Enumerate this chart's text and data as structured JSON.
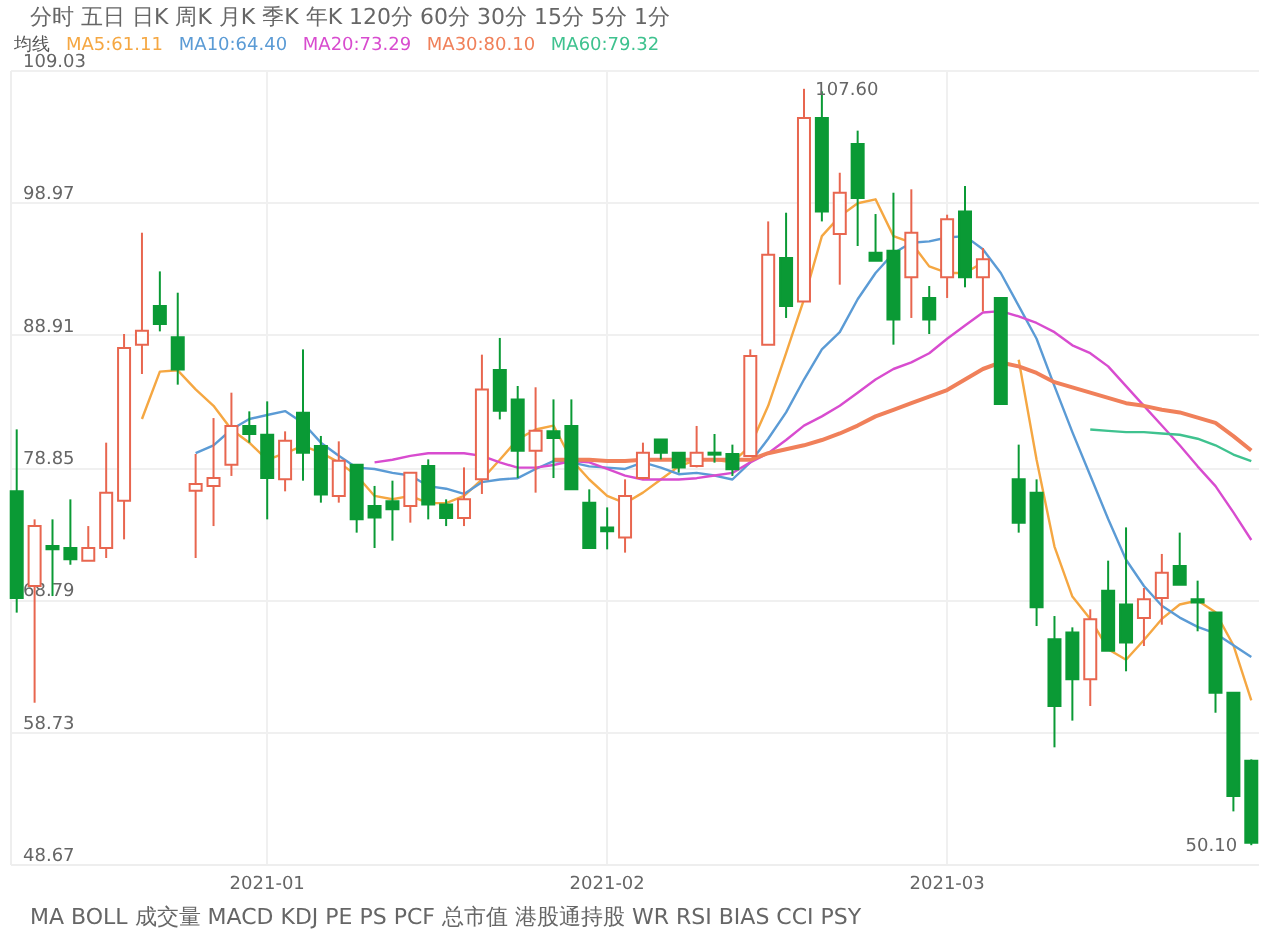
{
  "chart_data": {
    "type": "candlestick",
    "legend_title": "均线",
    "legend": "top left",
    "grid": true,
    "annotations": [
      "分时 五日 日K 周K 月K 季K 年K 120分 60分 30分 15分 5分 1分",
      "MA BOLL 成交量 MACD KDJ PE PS PCF 总市值 港股通持股 WR RSI BIAS CCI PSY",
      "107.60",
      "50.10"
    ],
    "categories": [
      null,
      null,
      null,
      null,
      null,
      null,
      null,
      null,
      null,
      null,
      null,
      null,
      null,
      null,
      "2021-01",
      null,
      null,
      null,
      null,
      null,
      null,
      null,
      null,
      null,
      null,
      null,
      null,
      null,
      null,
      null,
      null,
      null,
      null,
      "2021-02",
      null,
      null,
      null,
      null,
      null,
      null,
      null,
      null,
      null,
      null,
      null,
      null,
      null,
      null,
      null,
      null,
      null,
      null,
      "2021-03",
      null,
      null,
      null,
      null,
      null,
      null,
      null,
      null,
      null,
      null,
      null,
      null,
      null,
      null,
      null,
      null,
      null
    ],
    "ylim": [
      48.67,
      109.03
    ],
    "yticks": [
      48.67,
      58.73,
      68.79,
      78.85,
      88.91,
      98.97,
      109.03
    ],
    "ohlc": [
      [
        77.0,
        81.71,
        67.78,
        68.89
      ],
      [
        69.8,
        74.87,
        60.93,
        74.36
      ],
      [
        72.84,
        74.87,
        69.04,
        72.59
      ],
      [
        72.69,
        76.39,
        71.42,
        71.83
      ],
      [
        71.73,
        74.36,
        71.73,
        72.69
      ],
      [
        72.69,
        80.7,
        71.93,
        76.9
      ],
      [
        76.29,
        88.96,
        73.35,
        87.9
      ],
      [
        88.15,
        96.66,
        85.92,
        89.21
      ],
      [
        91.09,
        93.72,
        89.16,
        89.72
      ],
      [
        88.71,
        92.1,
        85.11,
        86.27
      ],
      [
        77.05,
        79.84,
        71.93,
        77.56
      ],
      [
        77.41,
        82.57,
        74.36,
        78.01
      ],
      [
        79.03,
        84.5,
        78.17,
        81.97
      ],
      [
        81.97,
        83.08,
        80.7,
        81.36
      ],
      [
        81.31,
        83.84,
        74.87,
        78.01
      ],
      [
        77.91,
        81.56,
        77.0,
        80.85
      ],
      [
        82.98,
        87.79,
        77.81,
        79.94
      ],
      [
        80.45,
        81.21,
        76.14,
        76.75
      ],
      [
        76.65,
        80.8,
        76.14,
        79.33
      ],
      [
        79.03,
        79.03,
        73.86,
        74.87
      ],
      [
        75.88,
        77.41,
        72.69,
        75.02
      ],
      [
        76.24,
        77.81,
        73.25,
        75.63
      ],
      [
        75.88,
        78.42,
        74.62,
        78.42
      ],
      [
        78.93,
        79.43,
        74.87,
        75.99
      ],
      [
        75.99,
        76.39,
        74.36,
        74.97
      ],
      [
        74.97,
        78.82,
        74.36,
        76.39
      ],
      [
        77.91,
        87.39,
        76.8,
        84.75
      ],
      [
        86.22,
        88.66,
        82.47,
        83.13
      ],
      [
        83.99,
        85.01,
        78.01,
        80.09
      ],
      [
        80.09,
        84.91,
        76.9,
        81.61
      ],
      [
        81.56,
        83.99,
        78.01,
        81.05
      ],
      [
        81.97,
        83.99,
        77.15,
        77.15
      ],
      [
        76.14,
        77.15,
        72.69,
        72.69
      ],
      [
        74.26,
        75.78,
        72.59,
        73.96
      ],
      [
        73.5,
        77.91,
        72.34,
        76.65
      ],
      [
        78.01,
        80.7,
        77.91,
        79.94
      ],
      [
        80.95,
        80.95,
        79.43,
        79.94
      ],
      [
        79.94,
        79.94,
        78.42,
        78.82
      ],
      [
        78.93,
        81.97,
        78.82,
        79.94
      ],
      [
        79.94,
        81.36,
        79.18,
        79.79
      ],
      [
        79.84,
        80.55,
        78.17,
        78.67
      ],
      [
        79.69,
        87.79,
        79.69,
        87.29
      ],
      [
        88.15,
        97.52,
        88.15,
        94.99
      ],
      [
        94.74,
        98.18,
        90.18,
        91.09
      ],
      [
        91.44,
        107.6,
        91.44,
        105.38
      ],
      [
        105.38,
        107.41,
        97.52,
        98.28
      ],
      [
        96.56,
        101.22,
        92.71,
        99.7
      ],
      [
        103.4,
        104.42,
        95.65,
        99.3
      ],
      [
        95.14,
        98.08,
        94.53,
        94.53
      ],
      [
        95.29,
        99.7,
        88.15,
        90.07
      ],
      [
        93.27,
        99.96,
        90.18,
        96.66
      ],
      [
        91.7,
        92.61,
        88.96,
        90.07
      ],
      [
        93.27,
        98.03,
        91.7,
        97.68
      ],
      [
        98.28,
        100.21,
        92.51,
        93.27
      ],
      [
        93.27,
        95.5,
        90.68,
        94.64
      ],
      [
        91.7,
        91.7,
        83.64,
        83.64
      ],
      [
        77.91,
        80.55,
        73.86,
        74.62
      ],
      [
        76.9,
        77.91,
        66.76,
        68.18
      ],
      [
        65.75,
        67.52,
        57.54,
        60.68
      ],
      [
        66.26,
        66.66,
        59.57,
        62.71
      ],
      [
        62.71,
        68.03,
        60.68,
        67.27
      ],
      [
        69.45,
        71.73,
        64.89,
        64.89
      ],
      [
        68.39,
        74.26,
        63.32,
        65.5
      ],
      [
        67.37,
        69.65,
        65.24,
        68.79
      ],
      [
        68.89,
        72.24,
        66.86,
        70.82
      ],
      [
        71.32,
        73.86,
        69.9,
        69.9
      ],
      [
        68.79,
        70.21,
        66.36,
        68.54
      ],
      [
        67.78,
        67.78,
        60.17,
        61.69
      ],
      [
        61.69,
        61.69,
        52.67,
        53.84
      ],
      [
        56.52,
        56.62,
        50.1,
        50.29
      ]
    ],
    "colors": [
      "#0a9a35",
      "#e8664f",
      "#0a9a35",
      "#0a9a35",
      "#e8664f",
      "#e8664f",
      "#e8664f",
      "#e8664f",
      "#0a9a35",
      "#0a9a35",
      "#e8664f",
      "#e8664f",
      "#e8664f",
      "#0a9a35",
      "#0a9a35",
      "#e8664f",
      "#0a9a35",
      "#0a9a35",
      "#e8664f",
      "#0a9a35",
      "#0a9a35",
      "#0a9a35",
      "#e8664f",
      "#0a9a35",
      "#0a9a35",
      "#e8664f",
      "#e8664f",
      "#0a9a35",
      "#0a9a35",
      "#e8664f",
      "#0a9a35",
      "#0a9a35",
      "#0a9a35",
      "#0a9a35",
      "#e8664f",
      "#e8664f",
      "#0a9a35",
      "#0a9a35",
      "#e8664f",
      "#0a9a35",
      "#0a9a35",
      "#e8664f",
      "#e8664f",
      "#0a9a35",
      "#e8664f",
      "#0a9a35",
      "#e8664f",
      "#0a9a35",
      "#0a9a35",
      "#0a9a35",
      "#e8664f",
      "#0a9a35",
      "#e8664f",
      "#0a9a35",
      "#e8664f",
      "#0a9a35",
      "#0a9a35",
      "#0a9a35",
      "#0a9a35",
      "#0a9a35",
      "#e8664f",
      "#0a9a35",
      "#0a9a35",
      "#e8664f",
      "#e8664f",
      "#0a9a35",
      "#0a9a35",
      "#0a9a35",
      "#0a9a35",
      "#0a9a35"
    ],
    "series": [
      {
        "name": "MA5:61.11",
        "type": "line",
        "color": "#f5a742",
        "values": [
          null,
          null,
          null,
          null,
          null,
          null,
          null,
          82.5,
          86.1,
          86.2,
          84.75,
          83.5,
          81.7,
          80.7,
          79.4,
          79.9,
          80.45,
          79.94,
          79.2,
          78.2,
          76.65,
          76.4,
          76.65,
          76.1,
          76.1,
          76.65,
          77.9,
          79.4,
          80.95,
          81.7,
          82.0,
          79.4,
          77.9,
          76.65,
          76.1,
          76.9,
          77.9,
          78.9,
          79.4,
          79.4,
          79.2,
          80.45,
          83.5,
          87.5,
          91.6,
          96.4,
          97.9,
          98.9,
          99.2,
          96.4,
          95.9,
          94.1,
          93.6,
          93.6,
          94.4,
          null,
          87.0,
          79.4,
          72.8,
          69.0,
          67.3,
          65.0,
          64.2,
          65.7,
          67.3,
          68.4,
          68.7,
          67.8,
          65.3,
          61.1
        ]
      },
      {
        "name": "MA10:64.40",
        "type": "line",
        "color": "#5b9bd5",
        "values": [
          null,
          null,
          null,
          null,
          null,
          null,
          null,
          null,
          null,
          null,
          79.9,
          80.5,
          81.7,
          82.5,
          82.8,
          83.1,
          82.2,
          80.7,
          79.7,
          78.8,
          78.7,
          78.4,
          78.2,
          77.4,
          77.2,
          76.8,
          77.7,
          77.9,
          78.0,
          78.7,
          79.3,
          79.2,
          78.9,
          78.8,
          78.7,
          79.2,
          78.8,
          78.3,
          78.4,
          78.2,
          77.9,
          79.2,
          81.0,
          83.0,
          85.5,
          87.8,
          89.1,
          91.6,
          93.6,
          95.1,
          95.9,
          96.0,
          96.3,
          96.4,
          95.4,
          93.6,
          91.1,
          88.6,
          85.0,
          81.5,
          78.2,
          74.9,
          71.8,
          69.8,
          68.3,
          67.4,
          66.7,
          66.2,
          65.3,
          64.4
        ]
      },
      {
        "name": "MA20:73.29",
        "type": "line",
        "color": "#d84ccf",
        "values": [
          null,
          null,
          null,
          null,
          null,
          null,
          null,
          null,
          null,
          null,
          null,
          null,
          null,
          null,
          null,
          null,
          null,
          null,
          null,
          null,
          79.2,
          79.4,
          79.7,
          79.9,
          79.9,
          79.9,
          79.7,
          79.2,
          78.8,
          78.8,
          79.0,
          79.3,
          79.2,
          78.7,
          78.2,
          77.9,
          77.9,
          77.9,
          78.0,
          78.2,
          78.4,
          79.2,
          79.9,
          80.9,
          82.0,
          82.7,
          83.5,
          84.5,
          85.5,
          86.3,
          86.8,
          87.5,
          88.6,
          89.6,
          90.6,
          90.7,
          90.3,
          89.8,
          89.1,
          88.1,
          87.5,
          86.5,
          85.0,
          83.5,
          82.0,
          80.5,
          78.9,
          77.4,
          75.4,
          73.3
        ]
      },
      {
        "name": "MA30:80.10",
        "type": "line",
        "color": "#f0805a",
        "values": [
          null,
          null,
          null,
          null,
          null,
          null,
          null,
          null,
          null,
          null,
          null,
          null,
          null,
          null,
          null,
          null,
          null,
          null,
          null,
          null,
          null,
          null,
          null,
          null,
          null,
          null,
          null,
          null,
          null,
          null,
          79.4,
          79.4,
          79.4,
          79.3,
          79.3,
          79.4,
          79.4,
          79.4,
          79.4,
          79.4,
          79.4,
          79.4,
          79.9,
          80.2,
          80.5,
          80.9,
          81.4,
          82.0,
          82.7,
          83.2,
          83.7,
          84.2,
          84.7,
          85.5,
          86.3,
          86.8,
          86.5,
          86.0,
          85.3,
          84.9,
          84.5,
          84.1,
          83.7,
          83.5,
          83.2,
          83.0,
          82.6,
          82.2,
          81.2,
          80.1
        ]
      },
      {
        "name": "MA60:79.32",
        "type": "line",
        "color": "#3fc28f",
        "values": [
          null,
          null,
          null,
          null,
          null,
          null,
          null,
          null,
          null,
          null,
          null,
          null,
          null,
          null,
          null,
          null,
          null,
          null,
          null,
          null,
          null,
          null,
          null,
          null,
          null,
          null,
          null,
          null,
          null,
          null,
          null,
          null,
          null,
          null,
          null,
          null,
          null,
          null,
          null,
          null,
          null,
          null,
          null,
          null,
          null,
          null,
          null,
          null,
          null,
          null,
          null,
          null,
          null,
          null,
          null,
          null,
          null,
          null,
          null,
          null,
          81.7,
          81.6,
          81.5,
          81.5,
          81.4,
          81.3,
          81.0,
          80.5,
          79.8,
          79.3
        ]
      }
    ]
  }
}
